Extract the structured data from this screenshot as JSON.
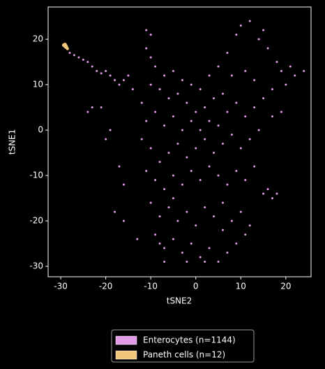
{
  "chart_data": {
    "type": "scatter",
    "xlabel": "tSNE2",
    "ylabel": "tSNE1",
    "xlim": [
      -32.8,
      25.6
    ],
    "ylim": [
      -32.3,
      27.1
    ],
    "xticks": [
      -30,
      -20,
      -10,
      0,
      10,
      20
    ],
    "yticks": [
      -30,
      -20,
      -10,
      0,
      10,
      20
    ],
    "grid": false,
    "legend": "below",
    "series": [
      {
        "name": "Enterocytes (n=1144)",
        "color": "#e29be6",
        "x": [
          -28,
          -27,
          -26,
          -25,
          -24,
          -23,
          -22,
          -21,
          -20,
          -19,
          -18,
          -17,
          -16,
          -15,
          -14,
          -24,
          -23,
          -21,
          -20,
          -19,
          -17,
          -16,
          -18,
          -16,
          -13,
          -11,
          -10,
          -11,
          -10,
          -9,
          -7,
          -5,
          -3,
          -1,
          1,
          3,
          5,
          7,
          9,
          10,
          12,
          14,
          15,
          16,
          18,
          19,
          21,
          22,
          24,
          20,
          17,
          13,
          11,
          8,
          6,
          4,
          2,
          0,
          -2,
          -4,
          -6,
          -8,
          -10,
          -12,
          -11,
          -9,
          -7,
          -5,
          -3,
          -1,
          1,
          3,
          5,
          7,
          9,
          11,
          13,
          15,
          17,
          19,
          14,
          12,
          10,
          8,
          6,
          4,
          2,
          0,
          -2,
          -4,
          -6,
          -8,
          -10,
          -12,
          -11,
          -9,
          -7,
          -5,
          -3,
          -1,
          1,
          3,
          5,
          7,
          9,
          11,
          13,
          15,
          16,
          17,
          18,
          -10,
          -8,
          -6,
          -4,
          -2,
          0,
          2,
          4,
          6,
          8,
          10,
          12,
          -9,
          -7,
          -5,
          -3,
          -1,
          1,
          3,
          5,
          7,
          9,
          11,
          -7,
          -2,
          2,
          -8,
          6,
          -5
        ],
        "values": [
          17,
          16.5,
          16,
          15.5,
          15,
          14,
          13,
          12.5,
          13,
          12,
          11,
          10,
          11,
          12,
          9,
          4,
          5,
          5,
          -2,
          0,
          -8,
          -12,
          -18,
          -20,
          -24,
          22,
          21,
          18,
          16,
          14,
          12,
          13,
          11,
          10,
          9,
          12,
          14,
          17,
          21,
          23,
          24,
          20,
          22,
          18,
          15,
          13,
          14,
          12,
          13,
          10,
          9,
          11,
          13,
          12,
          8,
          7,
          5,
          4,
          6,
          8,
          7,
          9,
          10,
          6,
          2,
          4,
          1,
          3,
          0,
          2,
          0,
          2,
          1,
          4,
          6,
          3,
          5,
          7,
          3,
          4,
          0,
          -2,
          -4,
          -1,
          -3,
          -5,
          -2,
          -4,
          -6,
          -3,
          -5,
          -7,
          -4,
          -2,
          -9,
          -11,
          -13,
          -10,
          -12,
          -9,
          -11,
          -8,
          -10,
          -12,
          -9,
          -11,
          -8,
          -14,
          -13,
          -15,
          -14,
          -16,
          -19,
          -17,
          -20,
          -18,
          -21,
          -17,
          -19,
          -22,
          -20,
          -18,
          -21,
          -23,
          -26,
          -24,
          -27,
          -25,
          -28,
          -26,
          -29,
          -27,
          -25,
          -23,
          -29,
          -29,
          -29,
          -25,
          -16,
          -15
        ]
      },
      {
        "name": "Paneth cells (n=12)",
        "color": "#f2c67a",
        "x": [
          -29.3,
          -29.1,
          -28.9,
          -29.2,
          -28.8,
          -29.0,
          -28.7,
          -29.4,
          -28.6,
          -29.0,
          -28.9,
          -28.5
        ],
        "values": [
          18.8,
          18.9,
          18.7,
          18.5,
          18.6,
          18.4,
          18.3,
          18.7,
          18.1,
          18.9,
          18.2,
          17.9
        ]
      }
    ]
  }
}
